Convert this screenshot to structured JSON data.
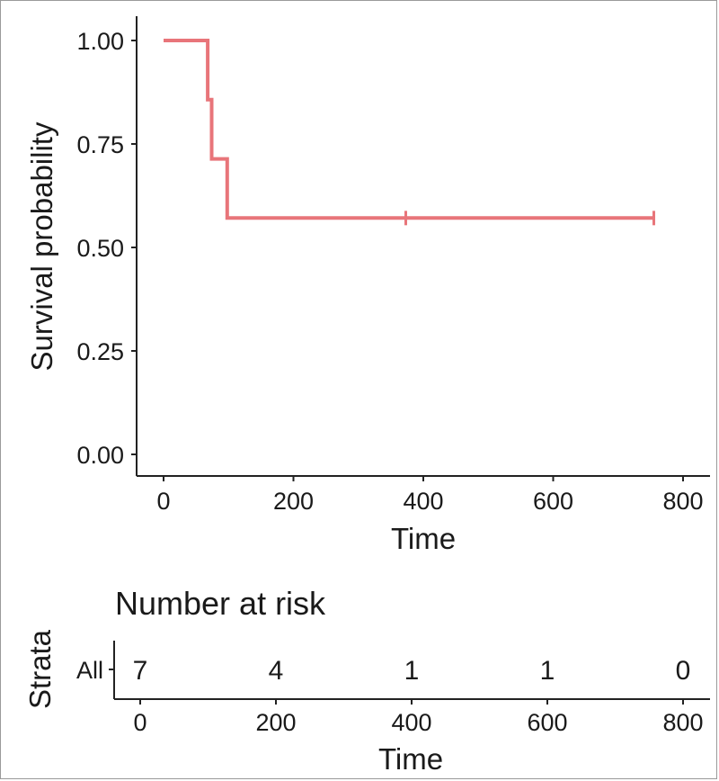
{
  "chart_data": [
    {
      "type": "line",
      "chart_kind": "kaplan-meier",
      "xlabel": "Time",
      "ylabel": "Survival probability",
      "xlim": [
        0,
        800
      ],
      "ylim": [
        0,
        1
      ],
      "x_ticks": [
        "0",
        "200",
        "400",
        "600",
        "800"
      ],
      "y_ticks": [
        "0.00",
        "0.25",
        "0.50",
        "0.75",
        "1.00"
      ],
      "grid": false,
      "legend": "none",
      "series": [
        {
          "color": "#e8757a",
          "step_points": [
            {
              "x": 0,
              "y": 1.0
            },
            {
              "x": 68,
              "y": 1.0
            },
            {
              "x": 68,
              "y": 0.857
            },
            {
              "x": 74,
              "y": 0.857
            },
            {
              "x": 74,
              "y": 0.714
            },
            {
              "x": 98,
              "y": 0.714
            },
            {
              "x": 98,
              "y": 0.571
            },
            {
              "x": 755,
              "y": 0.571
            }
          ],
          "censor_times": [
            373,
            755
          ],
          "censor_y": 0.571
        }
      ]
    },
    {
      "type": "table",
      "title": "Number at risk",
      "ylabel": "Strata",
      "xlabel": "Time",
      "xlim": [
        0,
        800
      ],
      "x_ticks": [
        "0",
        "200",
        "400",
        "600",
        "800"
      ],
      "rows": [
        {
          "strata": "All",
          "color": "#e8757a",
          "times": [
            0,
            200,
            400,
            600,
            800
          ],
          "counts": [
            "7",
            "4",
            "1",
            "1",
            "0"
          ]
        }
      ]
    }
  ]
}
